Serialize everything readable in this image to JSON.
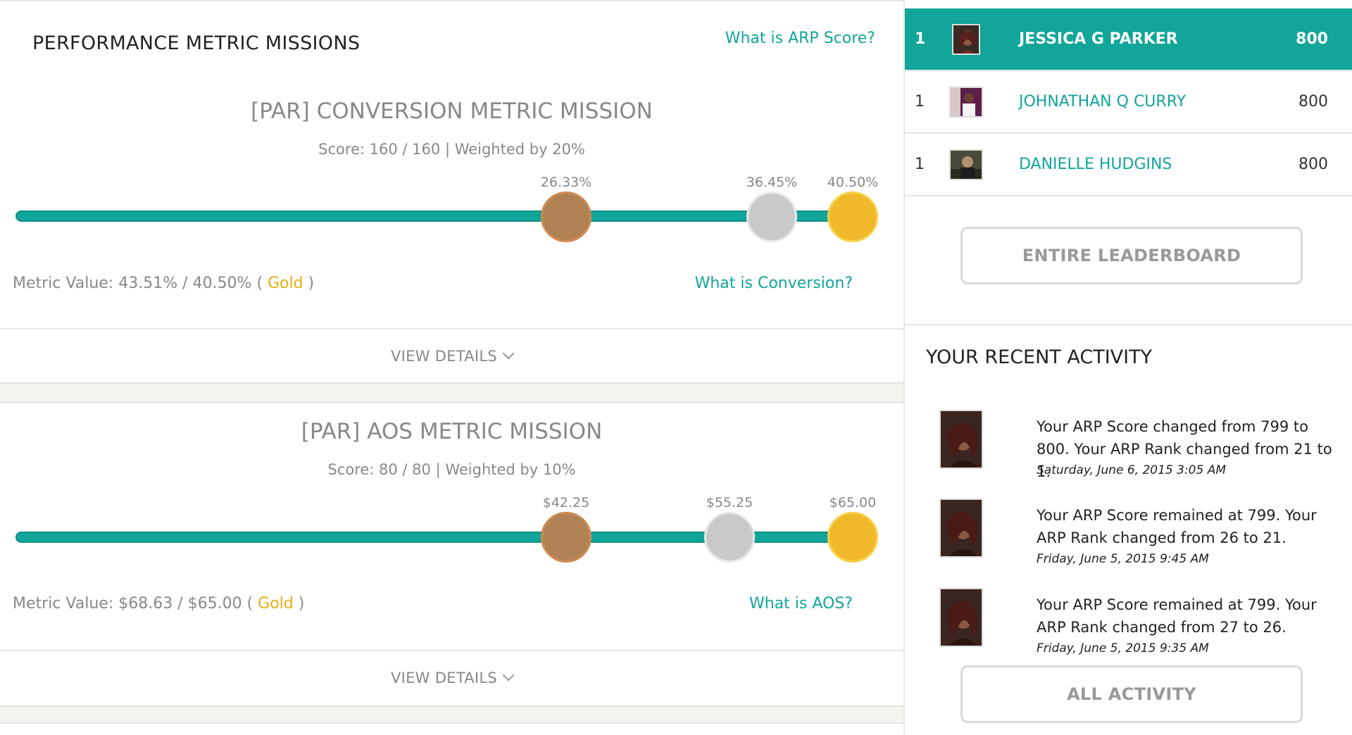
{
  "performance": {
    "section_title": "PERFORMANCE METRIC MISSIONS",
    "arp_help": "What is ARP Score?",
    "missions": [
      {
        "title": "[PAR] CONVERSION METRIC MISSION",
        "score": "Score: 160 / 160 | Weighted by 20%",
        "bronze": "26.33%",
        "silver": "36.45%",
        "gold": "40.50%",
        "metric_prefix": "Metric Value: 43.51% / 40.50% ( ",
        "metric_level": "Gold",
        "metric_suffix": " )",
        "help": "What is Conversion?",
        "details": "VIEW DETAILS"
      },
      {
        "title": "[PAR] AOS METRIC MISSION",
        "score": "Score: 80 / 80 | Weighted by 10%",
        "bronze": "$42.25",
        "silver": "$55.25",
        "gold": "$65.00",
        "metric_prefix": "Metric Value: $68.63 / $65.00 ( ",
        "metric_level": "Gold",
        "metric_suffix": " )",
        "help": "What is AOS?",
        "details": "VIEW DETAILS"
      }
    ]
  },
  "leaderboard": {
    "rows": [
      {
        "rank": "1",
        "name": "JESSICA G PARKER",
        "score": "800"
      },
      {
        "rank": "1",
        "name": "JOHNATHAN Q CURRY",
        "score": "800"
      },
      {
        "rank": "1",
        "name": "DANIELLE HUDGINS",
        "score": "800"
      }
    ],
    "button": "ENTIRE LEADERBOARD"
  },
  "activity": {
    "title": "YOUR RECENT ACTIVITY",
    "items": [
      {
        "text": "Your ARP Score changed from 799 to 800. Your ARP Rank changed from 21 to 1.",
        "date": "Saturday, June 6, 2015 3:05 AM"
      },
      {
        "text": "Your ARP Score remained at 799. Your ARP Rank changed from 26 to 21.",
        "date": "Friday, June 5, 2015 9:45 AM"
      },
      {
        "text": "Your ARP Score remained at 799. Your ARP Rank changed from 27 to 26.",
        "date": "Friday, June 5, 2015 9:35 AM"
      }
    ],
    "button": "ALL ACTIVITY"
  },
  "colors": {
    "accent": "#12a59a",
    "bronze": "#b08253",
    "silver": "#c9c9c9",
    "gold": "#f0b92b"
  }
}
